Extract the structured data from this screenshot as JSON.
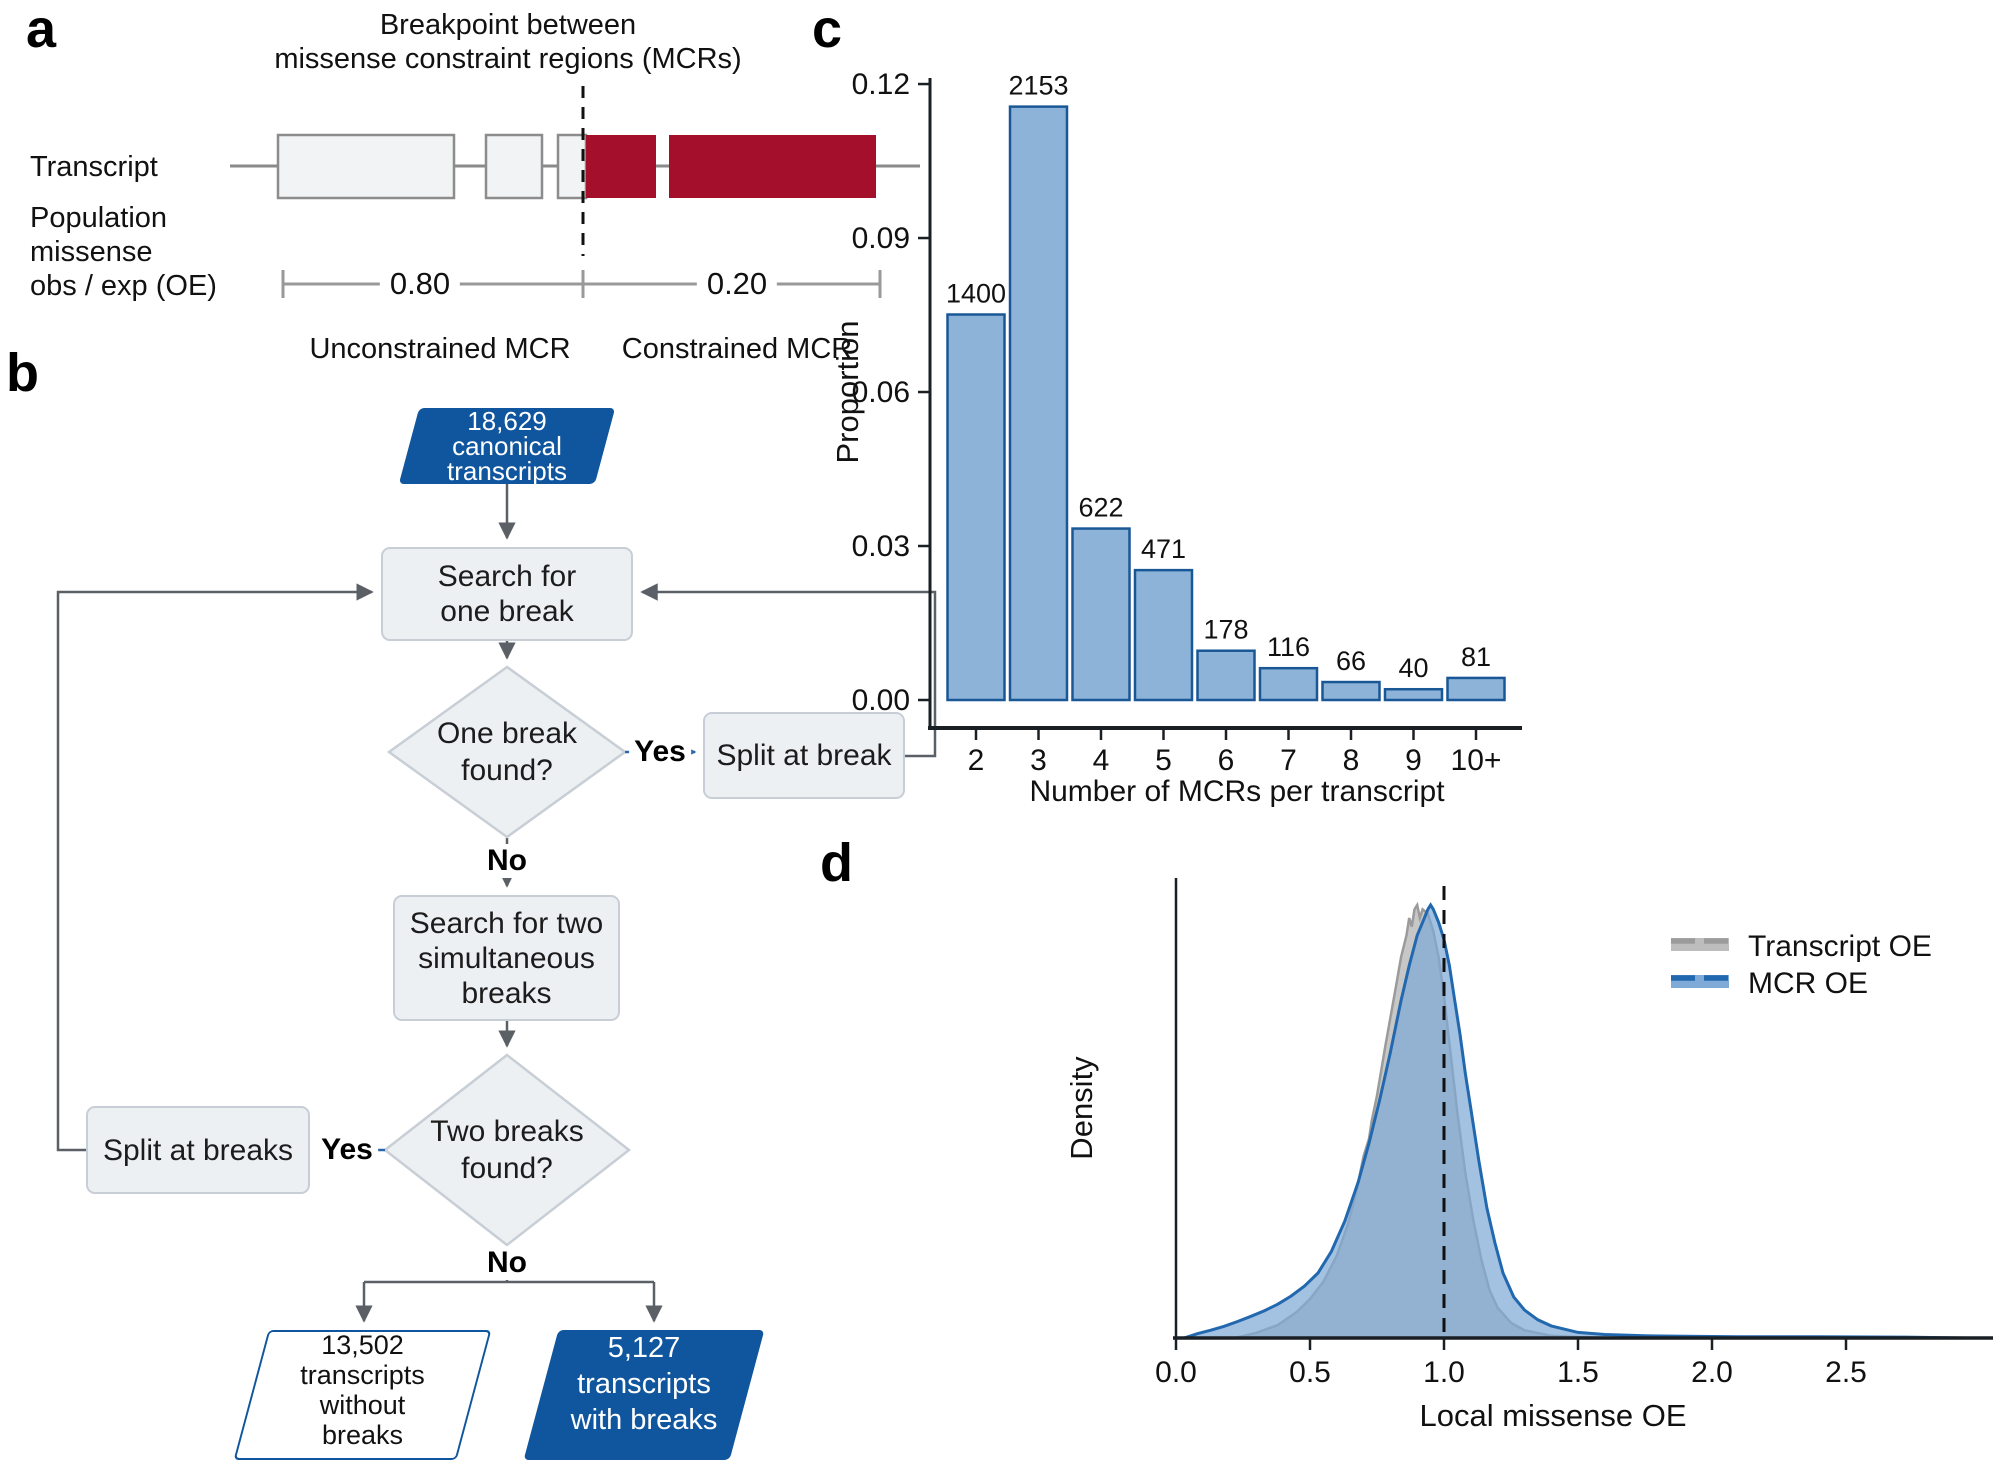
{
  "figure": {
    "panel_a": {
      "label": "a",
      "title_line1": "Breakpoint between",
      "title_line2": "missense constraint regions (MCRs)",
      "transcript_label": "Transcript",
      "oe_line1": "Population",
      "oe_line2": "missense",
      "oe_line3": "obs / exp (OE)",
      "oe_left": "0.80",
      "oe_right": "0.20",
      "unconstrained_label": "Unconstrained MCR",
      "constrained_label": "Constrained MCR"
    },
    "panel_b": {
      "label": "b",
      "start": [
        "18,629",
        "canonical",
        "transcripts"
      ],
      "search_one": [
        "Search for",
        "one break"
      ],
      "decision_one": [
        "One break",
        "found?"
      ],
      "yes1": "Yes",
      "no1": "No",
      "split_break": "Split at break",
      "search_two": [
        "Search for two",
        "simultaneous",
        "breaks"
      ],
      "decision_two": [
        "Two breaks",
        "found?"
      ],
      "yes2": "Yes",
      "no2": "No",
      "split_breaks": "Split at breaks",
      "out_without": [
        "13,502",
        "transcripts",
        "without",
        "breaks"
      ],
      "out_with": [
        "5,127",
        "transcripts",
        "with breaks"
      ]
    },
    "panel_c": {
      "label": "c"
    },
    "panel_d": {
      "label": "d"
    }
  },
  "colors": {
    "constrained_red": "#A4102C",
    "exon_fill": "#F2F3F4",
    "exon_border": "#8C8C8C",
    "transcript_line": "#8A8A8A",
    "scalebar_gray": "#999999",
    "flow_blue": "#10569E",
    "node_fill": "#EDF0F3",
    "node_border": "#C8CED6",
    "arrow_gray": "#5B6066",
    "yes_blue": "#2B67AD",
    "bar_fill": "#8DB4D8",
    "bar_border": "#1A5796",
    "axis_black": "#1A1F24",
    "density_gray_fill": "#BDBDBD",
    "density_gray_line": "#9B9B9B",
    "density_blue_fill": "#7FA9D6",
    "density_blue_line": "#2268AE"
  },
  "chart_data": [
    {
      "panel": "c",
      "type": "bar",
      "categories": [
        "2",
        "3",
        "4",
        "5",
        "6",
        "7",
        "8",
        "9",
        "10+"
      ],
      "counts": [
        1400,
        2153,
        622,
        471,
        178,
        116,
        66,
        40,
        81
      ],
      "values": [
        0.0751,
        0.1156,
        0.0334,
        0.0253,
        0.0096,
        0.0062,
        0.0035,
        0.0021,
        0.0043
      ],
      "bar_labels": [
        "1400",
        "2153",
        "622",
        "471",
        "178",
        "116",
        "66",
        "40",
        "81"
      ],
      "xlabel": "Number of MCRs per transcript",
      "ylabel": "Proportion",
      "yticks": [
        0.0,
        0.03,
        0.06,
        0.09,
        0.12
      ],
      "ytick_labels": [
        "0.00",
        "0.03",
        "0.06",
        "0.09",
        "0.12"
      ],
      "ylim": [
        0,
        0.12
      ],
      "grid": false
    },
    {
      "panel": "d",
      "type": "area",
      "xlabel": "Local missense OE",
      "ylabel": "Density",
      "xticks": [
        0.0,
        0.5,
        1.0,
        1.5,
        2.0,
        2.5
      ],
      "xtick_labels": [
        "0.0",
        "0.5",
        "1.0",
        "1.5",
        "2.0",
        "2.5"
      ],
      "xlim": [
        0,
        3.05
      ],
      "dashed_line_x": 1.0,
      "legend": {
        "position": "top-right",
        "entries": [
          "Transcript OE",
          "MCR OE"
        ]
      },
      "series": [
        {
          "name": "Transcript OE",
          "x": [
            0.22,
            0.3,
            0.38,
            0.45,
            0.5,
            0.55,
            0.6,
            0.64,
            0.67,
            0.7,
            0.72,
            0.73,
            0.75,
            0.78,
            0.8,
            0.82,
            0.84,
            0.86,
            0.87,
            0.88,
            0.89,
            0.9,
            0.91,
            0.92,
            0.94,
            0.96,
            0.98,
            1.0,
            1.02,
            1.05,
            1.08,
            1.11,
            1.14,
            1.17,
            1.2,
            1.25,
            1.3,
            1.4,
            1.5,
            1.6
          ],
          "density": [
            0.0,
            0.012,
            0.03,
            0.06,
            0.09,
            0.13,
            0.19,
            0.26,
            0.33,
            0.42,
            0.46,
            0.5,
            0.56,
            0.67,
            0.74,
            0.81,
            0.88,
            0.93,
            0.97,
            0.95,
            0.99,
            1.0,
            0.97,
            0.99,
            0.98,
            0.94,
            0.88,
            0.79,
            0.68,
            0.52,
            0.38,
            0.27,
            0.18,
            0.11,
            0.07,
            0.035,
            0.018,
            0.005,
            0.002,
            0.0
          ]
        },
        {
          "name": "MCR OE",
          "x": [
            0.03,
            0.08,
            0.13,
            0.18,
            0.23,
            0.28,
            0.33,
            0.38,
            0.43,
            0.48,
            0.53,
            0.58,
            0.63,
            0.68,
            0.72,
            0.76,
            0.8,
            0.84,
            0.87,
            0.9,
            0.92,
            0.94,
            0.95,
            0.96,
            0.98,
            1.0,
            1.02,
            1.04,
            1.06,
            1.08,
            1.1,
            1.13,
            1.16,
            1.19,
            1.22,
            1.26,
            1.3,
            1.35,
            1.4,
            1.5,
            1.6,
            1.75,
            1.9,
            2.1,
            2.4,
            2.7,
            2.95
          ],
          "density": [
            0.0,
            0.01,
            0.018,
            0.027,
            0.038,
            0.05,
            0.063,
            0.078,
            0.097,
            0.12,
            0.15,
            0.2,
            0.27,
            0.36,
            0.45,
            0.55,
            0.66,
            0.78,
            0.86,
            0.93,
            0.96,
            0.99,
            1.0,
            0.99,
            0.96,
            0.92,
            0.86,
            0.78,
            0.7,
            0.61,
            0.53,
            0.41,
            0.3,
            0.22,
            0.15,
            0.095,
            0.065,
            0.042,
            0.028,
            0.013,
            0.008,
            0.005,
            0.004,
            0.003,
            0.003,
            0.002,
            0.0
          ]
        }
      ]
    }
  ]
}
